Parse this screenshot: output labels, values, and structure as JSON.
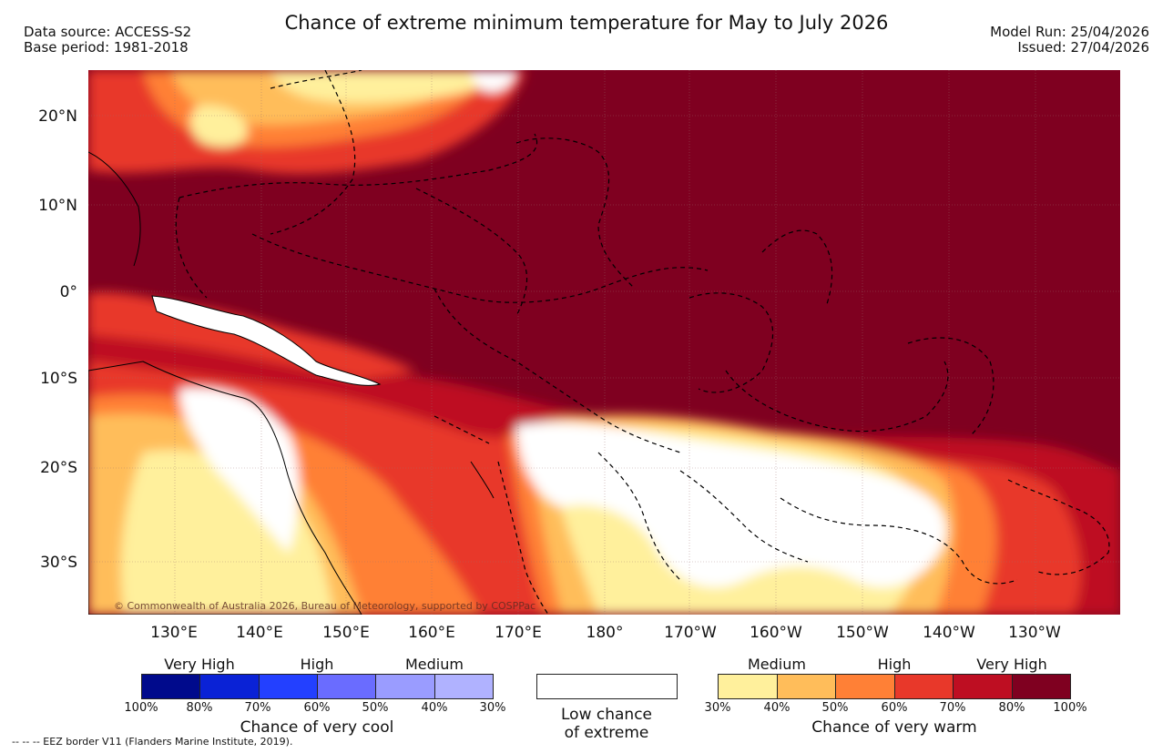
{
  "header": {
    "title": "Chance of extreme minimum temperature for May to July 2026",
    "data_source": "Data source: ACCESS-S2",
    "base_period": "Base period: 1981-2018",
    "model_run": "Model Run: 25/04/2026",
    "issued": "Issued: 27/04/2026"
  },
  "map": {
    "lat_labels": [
      "20°N",
      "10°N",
      "0°",
      "10°S",
      "20°S",
      "30°S"
    ],
    "lon_labels": [
      "130°E",
      "140°E",
      "150°E",
      "160°E",
      "170°E",
      "180°",
      "170°W",
      "160°W",
      "150°W",
      "140°W",
      "130°W"
    ],
    "copyright": "© Commonwealth of Australia 2026, Bureau of Meteorology, supported by COSPPac"
  },
  "legend_cool": {
    "levels": [
      "Very High",
      "High",
      "Medium"
    ],
    "ticks": [
      "100%",
      "80%",
      "70%",
      "60%",
      "50%",
      "40%",
      "30%"
    ],
    "colors": [
      "#000a8c",
      "#0a22d6",
      "#2340ff",
      "#6a6cff",
      "#9a9cff",
      "#b0b2ff"
    ],
    "caption": "Chance of very cool"
  },
  "legend_low": {
    "caption_line1": "Low chance",
    "caption_line2": "of extreme"
  },
  "legend_warm": {
    "levels": [
      "Medium",
      "High",
      "Very High"
    ],
    "ticks": [
      "30%",
      "40%",
      "50%",
      "60%",
      "70%",
      "80%",
      "100%"
    ],
    "colors": [
      "#fff09c",
      "#ffbd5a",
      "#ff8036",
      "#e8382a",
      "#be0e22",
      "#7f0020"
    ],
    "caption": "Chance of very warm"
  },
  "footer": {
    "eez_note": "--  --  -- EEZ border V11 (Flanders Marine Institute, 2019)."
  }
}
